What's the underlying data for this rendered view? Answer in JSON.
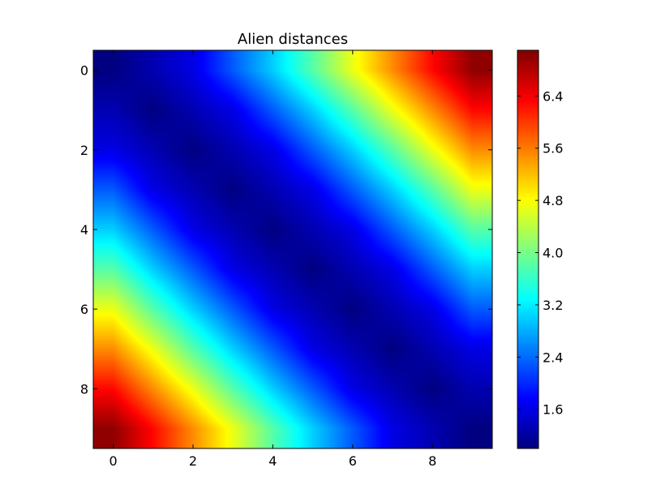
{
  "chart_data": {
    "type": "heatmap",
    "title": "Alien distances",
    "xlabel": "",
    "ylabel": "",
    "colormap": "jet",
    "interpolation": "smooth",
    "x_ticks": [
      "0",
      "2",
      "4",
      "6",
      "8"
    ],
    "y_ticks": [
      "0",
      "2",
      "4",
      "6",
      "8"
    ],
    "colorbar_ticks": [
      "1.6",
      "2.4",
      "3.2",
      "4.0",
      "4.8",
      "5.6",
      "6.4"
    ],
    "colorbar_range": [
      1.0,
      7.1
    ],
    "grid": false,
    "rows": 10,
    "cols": 10,
    "values": [
      [
        1.0,
        1.3,
        1.6,
        2.3,
        3.0,
        3.8,
        4.7,
        5.5,
        6.3,
        7.0
      ],
      [
        1.3,
        1.0,
        1.3,
        1.6,
        2.3,
        3.0,
        3.8,
        4.7,
        5.5,
        6.3
      ],
      [
        1.6,
        1.3,
        1.0,
        1.3,
        1.6,
        2.3,
        3.0,
        3.8,
        4.7,
        5.5
      ],
      [
        2.3,
        1.6,
        1.3,
        1.0,
        1.3,
        1.6,
        2.3,
        3.0,
        3.8,
        4.7
      ],
      [
        3.0,
        2.3,
        1.6,
        1.3,
        1.0,
        1.3,
        1.6,
        2.3,
        3.0,
        3.8
      ],
      [
        3.8,
        3.0,
        2.3,
        1.6,
        1.3,
        1.0,
        1.3,
        1.6,
        2.3,
        3.0
      ],
      [
        4.7,
        3.8,
        3.0,
        2.3,
        1.6,
        1.3,
        1.0,
        1.3,
        1.6,
        2.3
      ],
      [
        5.5,
        4.7,
        3.8,
        3.0,
        2.3,
        1.6,
        1.3,
        1.0,
        1.3,
        1.6
      ],
      [
        6.3,
        5.5,
        4.7,
        3.8,
        3.0,
        2.3,
        1.6,
        1.3,
        1.0,
        1.3
      ],
      [
        7.0,
        6.3,
        5.5,
        4.7,
        3.8,
        3.0,
        2.3,
        1.6,
        1.3,
        1.0
      ]
    ]
  }
}
